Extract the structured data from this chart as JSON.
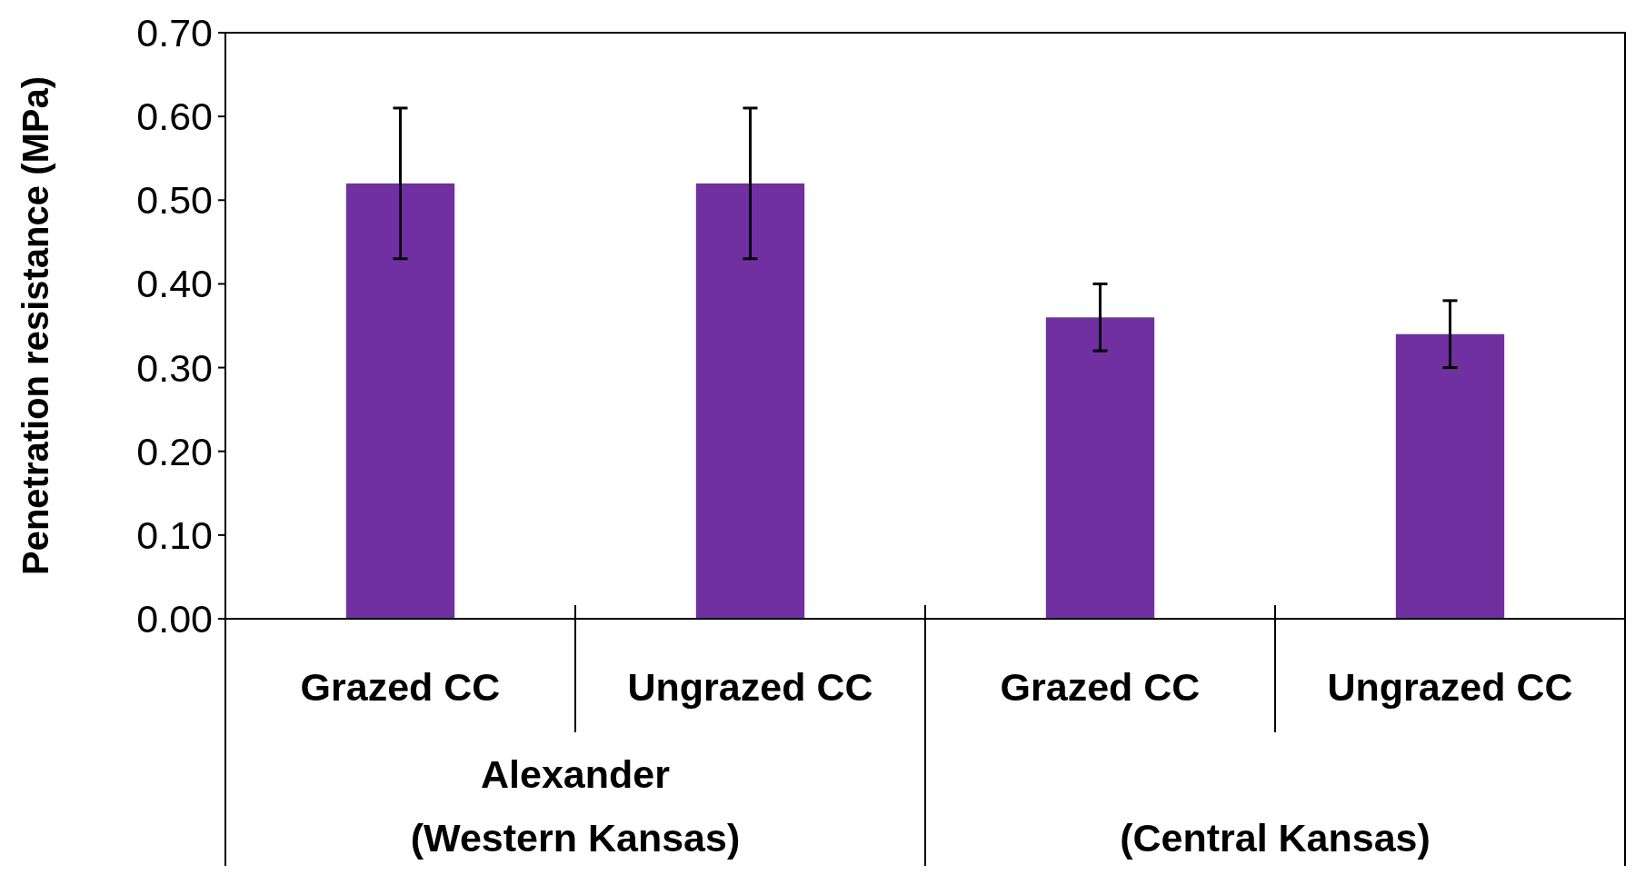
{
  "chart_data": {
    "type": "bar",
    "ylabel": "Penetration resistance (MPa)",
    "categories": [
      "Grazed CC",
      "Ungrazed CC",
      "Grazed CC",
      "Ungrazed CC"
    ],
    "values": [
      0.52,
      0.52,
      0.36,
      0.34
    ],
    "errors": [
      0.09,
      0.09,
      0.04,
      0.04
    ],
    "color": "#7030a0",
    "ylim": [
      0,
      0.7
    ],
    "yticks": [
      {
        "value": 0,
        "label": "0.00"
      },
      {
        "value": 0.1,
        "label": "0.10"
      },
      {
        "value": 0.2,
        "label": "0.20"
      },
      {
        "value": 0.3,
        "label": "0.30"
      },
      {
        "value": 0.4,
        "label": "0.40"
      },
      {
        "value": 0.5,
        "label": "0.50"
      },
      {
        "value": 0.6,
        "label": "0.60"
      },
      {
        "value": 0.7,
        "label": "0.70"
      }
    ],
    "annotations": [
      "Alexander\n(Western Kansas)",
      "(Central Kansas)"
    ],
    "grid": false
  }
}
